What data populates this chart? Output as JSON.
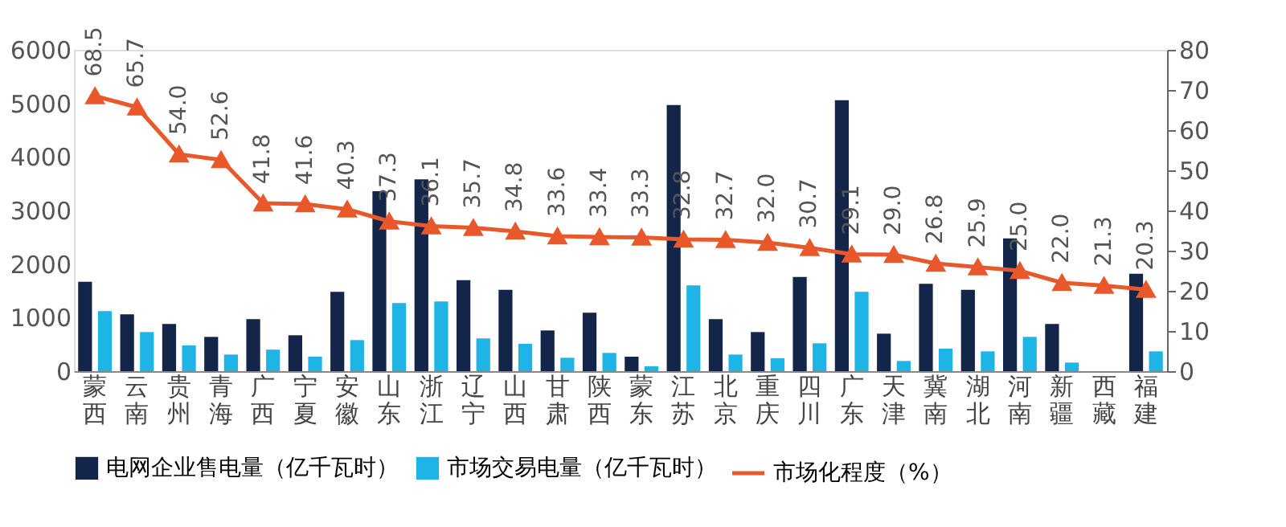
{
  "chart_data": {
    "type": "bar",
    "categories": [
      "蒙西",
      "云南",
      "贵州",
      "青海",
      "广西",
      "宁夏",
      "安徽",
      "山东",
      "浙江",
      "辽宁",
      "山西",
      "甘肃",
      "陕西",
      "蒙东",
      "江苏",
      "北京",
      "重庆",
      "四川",
      "广东",
      "天津",
      "冀南",
      "湖北",
      "河南",
      "新疆",
      "西藏",
      "福建"
    ],
    "series": [
      {
        "name": "电网企业售电量（亿千瓦时）",
        "color": "#14254a",
        "values": [
          1670,
          1060,
          880,
          640,
          970,
          670,
          1480,
          3360,
          3580,
          1700,
          1520,
          760,
          1090,
          270,
          4970,
          970,
          730,
          1760,
          5060,
          700,
          1630,
          1520,
          2480,
          880,
          null,
          1820
        ]
      },
      {
        "name": "市场交易电量（亿千瓦时）",
        "color": "#1eb4e6",
        "values": [
          1120,
          730,
          480,
          310,
          400,
          270,
          580,
          1270,
          1300,
          610,
          510,
          250,
          340,
          90,
          1600,
          310,
          240,
          520,
          1480,
          190,
          420,
          370,
          640,
          160,
          null,
          370
        ]
      },
      {
        "name": "市场化程度（%）",
        "type": "line",
        "axis": "y2",
        "color": "#e8582b",
        "values": [
          68.5,
          65.7,
          54.0,
          52.6,
          41.8,
          41.6,
          40.3,
          37.3,
          36.1,
          35.7,
          34.8,
          33.6,
          33.4,
          33.3,
          32.8,
          32.7,
          32.0,
          30.7,
          29.1,
          29.0,
          26.8,
          25.9,
          25.0,
          22.0,
          21.3,
          20.3
        ],
        "value_labels": [
          "68.5",
          "65.7",
          "54.0",
          "52.6",
          "41.8",
          "41.6",
          "40.3",
          "37.3",
          "36.1",
          "35.7",
          "34.8",
          "33.6",
          "33.4",
          "33.3",
          "32.8",
          "32.7",
          "32.0",
          "30.7",
          "29.1",
          "29.0",
          "26.8",
          "25.9",
          "25.0",
          "22.0",
          "21.3",
          "20.3"
        ]
      }
    ],
    "ylim": [
      0,
      6000
    ],
    "yticks": [
      0,
      1000,
      2000,
      3000,
      4000,
      5000,
      6000
    ],
    "y2lim": [
      0,
      80
    ],
    "y2ticks": [
      0,
      10,
      20,
      30,
      40,
      50,
      60,
      70,
      80
    ],
    "marker": "triangle",
    "grid": false,
    "legend": "bottom"
  }
}
